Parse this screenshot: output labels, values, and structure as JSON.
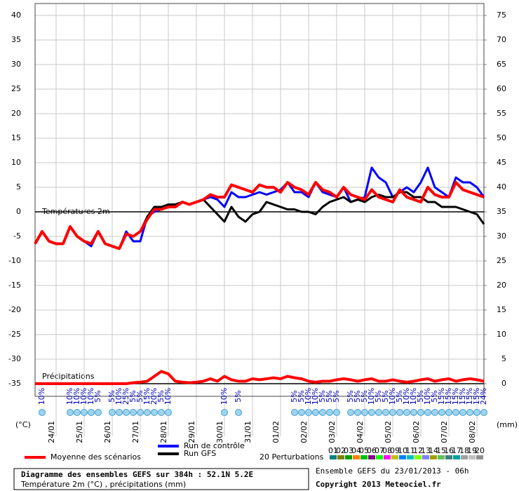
{
  "chart_data": {
    "type": "line",
    "ylabel": "(°C)",
    "y2label": "(mm)",
    "temp_label": "Températures 2m",
    "precip_label": "Précipitations",
    "xlim": [
      0,
      384
    ],
    "ylim": [
      -35,
      40
    ],
    "y2lim": [
      0,
      75
    ],
    "yticks": [
      -35,
      -30,
      -25,
      -20,
      -15,
      -10,
      -5,
      0,
      5,
      10,
      15,
      20,
      25,
      30,
      35,
      40
    ],
    "y2ticks": [
      0,
      5,
      10,
      15,
      20,
      25,
      30,
      35,
      40,
      45,
      50,
      55,
      60,
      65,
      70,
      75
    ],
    "xticks": [
      {
        "value": 18,
        "label": "24/01"
      },
      {
        "value": 42,
        "label": "25/01"
      },
      {
        "value": 66,
        "label": "26/01"
      },
      {
        "value": 90,
        "label": "27/01"
      },
      {
        "value": 114,
        "label": "28/01"
      },
      {
        "value": 138,
        "label": "29/01"
      },
      {
        "value": 162,
        "label": "30/01"
      },
      {
        "value": 186,
        "label": "31/01"
      },
      {
        "value": 210,
        "label": "01/02"
      },
      {
        "value": 234,
        "label": "02/02"
      },
      {
        "value": 258,
        "label": "03/02"
      },
      {
        "value": 282,
        "label": "04/02"
      },
      {
        "value": 306,
        "label": "05/02"
      },
      {
        "value": 330,
        "label": "06/02"
      },
      {
        "value": 354,
        "label": "07/02"
      },
      {
        "value": 378,
        "label": "08/02"
      }
    ],
    "grid": true,
    "x": [
      0,
      6,
      12,
      18,
      24,
      30,
      36,
      42,
      48,
      54,
      60,
      66,
      72,
      78,
      84,
      90,
      96,
      102,
      108,
      114,
      120,
      126,
      132,
      138,
      144,
      150,
      156,
      162,
      168,
      174,
      180,
      186,
      192,
      198,
      204,
      210,
      216,
      222,
      228,
      234,
      240,
      246,
      252,
      258,
      264,
      270,
      276,
      282,
      288,
      294,
      300,
      306,
      312,
      318,
      324,
      330,
      336,
      342,
      348,
      354,
      360,
      366,
      372,
      378,
      384
    ],
    "series": [
      {
        "name": "Run de contrôle",
        "color": "#0000ff",
        "width": 3,
        "values": [
          -6.5,
          -4,
          -6,
          -6.5,
          -6.5,
          -3,
          -5,
          -6,
          -7,
          -4,
          -6.5,
          -7,
          -7.5,
          -4,
          -6,
          -6,
          -1,
          0,
          0.5,
          1,
          1.5,
          2,
          1.5,
          2,
          2.5,
          3,
          2.5,
          1,
          4,
          3,
          3,
          3.5,
          4,
          3.5,
          4,
          4.5,
          6,
          4,
          4,
          3,
          6,
          4,
          3.5,
          3,
          5,
          2,
          2.5,
          3,
          9,
          7,
          6,
          3,
          4,
          5,
          4,
          6,
          9,
          5,
          4,
          3,
          7,
          6,
          6,
          5,
          3
        ]
      },
      {
        "name": "Run GFS",
        "color": "#000000",
        "width": 3,
        "values": [
          -6.5,
          -4,
          -6,
          -6.5,
          -6.5,
          -3,
          -5,
          -6,
          -6.5,
          -4,
          -6.5,
          -7,
          -7.5,
          -4.5,
          -5,
          -4,
          -1,
          1,
          1,
          1.5,
          1.5,
          2,
          1.5,
          2,
          2.5,
          1,
          -0.5,
          -2,
          1,
          -1,
          -2,
          -0.5,
          0,
          2,
          1.5,
          1,
          0.5,
          0.5,
          0,
          0,
          -0.5,
          1,
          2,
          2.5,
          3,
          2,
          2.5,
          2,
          3,
          3.5,
          3,
          3,
          4,
          4,
          3,
          3,
          2,
          2,
          1,
          1,
          1,
          0.5,
          0,
          -0.5,
          -2.5
        ]
      },
      {
        "name": "Moyenne des scénarios",
        "color": "#ff0000",
        "width": 4,
        "values": [
          -6.5,
          -4,
          -6,
          -6.5,
          -6.5,
          -3,
          -5,
          -6,
          -6.5,
          -4,
          -6.5,
          -7,
          -7.5,
          -4.5,
          -5,
          -4,
          -1.5,
          0.5,
          0.5,
          1,
          1,
          2,
          1.5,
          2,
          2.5,
          3.5,
          3,
          3,
          5.5,
          5,
          4.5,
          4,
          5.5,
          5,
          5,
          4,
          6,
          5,
          4.5,
          3.5,
          6,
          4.5,
          4,
          3,
          5,
          3.5,
          3,
          2.5,
          4.5,
          3,
          2.5,
          2,
          4.5,
          3,
          2.5,
          2,
          5,
          3.5,
          3,
          3,
          6,
          4.5,
          4,
          3.5,
          3
        ]
      },
      {
        "name": "Moyenne des scénarios",
        "color": "#ff0000",
        "width": 4,
        "axis": "y2",
        "values": [
          0,
          0,
          0,
          0,
          0,
          0,
          0,
          0,
          0,
          0,
          0,
          0,
          0,
          0,
          0.2,
          0.3,
          0.5,
          1.5,
          2.5,
          2,
          0.5,
          0.3,
          0.2,
          0.3,
          0.5,
          1,
          0.5,
          1.5,
          0.8,
          0.5,
          0.5,
          1,
          0.8,
          1,
          1.2,
          1,
          1.5,
          1.2,
          1,
          0.5,
          0.3,
          0.5,
          0.5,
          0.8,
          1,
          0.8,
          0.5,
          0.8,
          1,
          0.5,
          0.5,
          0.8,
          0.5,
          0.3,
          0.5,
          0.8,
          1,
          0.5,
          0.8,
          1,
          0.5,
          0.8,
          1,
          0.8,
          0.5
        ]
      }
    ],
    "snow": {
      "x": [
        6,
        30,
        36,
        42,
        48,
        54,
        66,
        72,
        78,
        84,
        90,
        96,
        102,
        108,
        114,
        162,
        174,
        222,
        228,
        234,
        240,
        246,
        252,
        258,
        270,
        276,
        282,
        288,
        294,
        300,
        306,
        312,
        318,
        324,
        330,
        336,
        342,
        348,
        354,
        360,
        366,
        372,
        378,
        384
      ],
      "labels": [
        "10%",
        "10%",
        "10%",
        "10%",
        "10%",
        "5%",
        "5%",
        "10%",
        "25%",
        "5%",
        "5%",
        "15%",
        "20%",
        "5%",
        "10%",
        "10%",
        "5%",
        "5%",
        "5%",
        "10%",
        "10%",
        "5%",
        "5%",
        "5%",
        "5%",
        "5%",
        "5%",
        "10%",
        "5%",
        "5%",
        "10%",
        "5%",
        "10%",
        "10%",
        "5%",
        "10%",
        "5%",
        "15%",
        "15%",
        "15%",
        "15%",
        "15%",
        "15%",
        "24%"
      ]
    },
    "perturbations": {
      "label": "20 Perturbations",
      "numbers": [
        "01",
        "02",
        "03",
        "04",
        "05",
        "06",
        "07",
        "08",
        "09",
        "10",
        "11",
        "12",
        "13",
        "14",
        "15",
        "16",
        "17",
        "18",
        "19",
        "20"
      ],
      "colors": [
        "#008080",
        "#808000",
        "#00a000",
        "#ff8000",
        "#00c000",
        "#800080",
        "#00ff00",
        "#ff00ff",
        "#c0c000",
        "#0080ff",
        "#00c0c0",
        "#80ff00",
        "#8080ff",
        "#a0a000",
        "#60c060",
        "#408080",
        "#00a0a0",
        "#a0a0a0",
        "#c0c0c0",
        "#909090"
      ]
    },
    "footer": {
      "title": "Diagramme des ensembles GEFS sur 384h : 52.1N 5.2E",
      "subtitle": "Température 2m (°C) , précipitations (mm)",
      "run": "Ensemble GEFS du 23/01/2013 - 06h",
      "copyright": "Copyright 2013 Meteociel.fr"
    }
  }
}
